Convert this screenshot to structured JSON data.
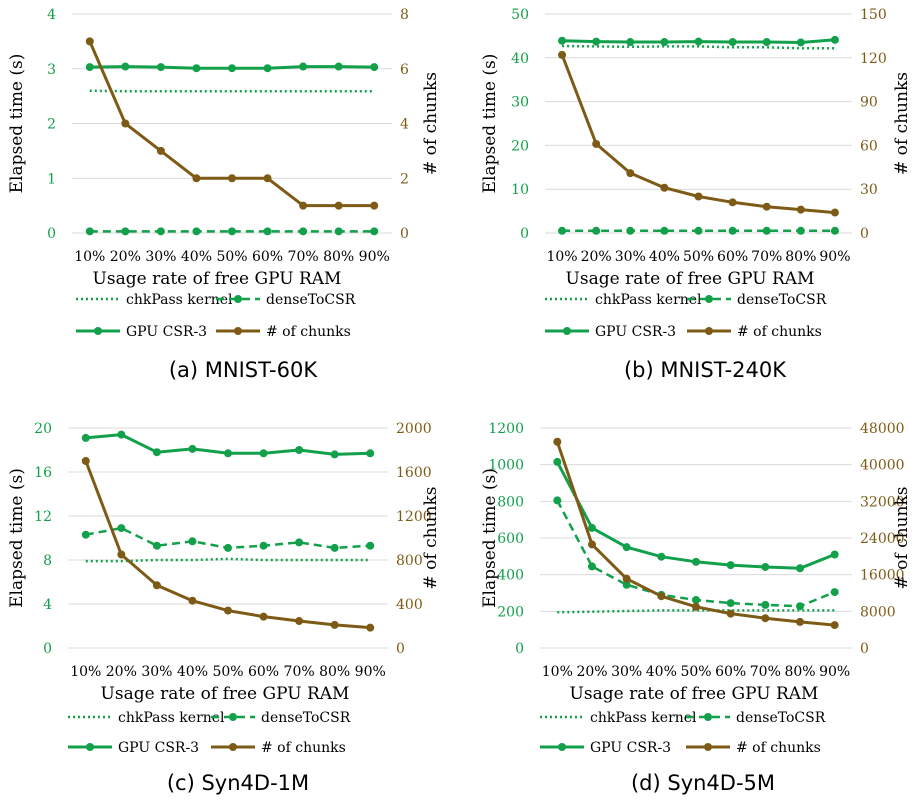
{
  "colors": {
    "primary_green": "#12a04b",
    "chunks_brown": "#7d5b17",
    "gridline": "#d9d9d9"
  },
  "chart_data": [
    {
      "type": "line",
      "caption": "(a) MNIST-60K",
      "x": [
        "10%",
        "20%",
        "30%",
        "40%",
        "50%",
        "60%",
        "70%",
        "80%",
        "90%"
      ],
      "xlabel": "Usage rate of free GPU RAM",
      "ylabel": "Elapsed time (s)",
      "ylabel2": "# of chunks",
      "ylim": [
        0,
        4
      ],
      "yticks": [
        0,
        1,
        2,
        3,
        4
      ],
      "y2lim": [
        0,
        8
      ],
      "y2ticks": [
        0,
        2,
        4,
        6,
        8
      ],
      "grid": true,
      "legend_position": "bottom",
      "series": [
        {
          "name": "chkPass kernel",
          "axis": "left",
          "values": [
            2.6,
            2.59,
            2.59,
            2.59,
            2.59,
            2.59,
            2.59,
            2.59,
            2.59
          ]
        },
        {
          "name": "denseToCSR",
          "axis": "left",
          "values": [
            0.03,
            0.03,
            0.03,
            0.03,
            0.03,
            0.03,
            0.03,
            0.03,
            0.03
          ]
        },
        {
          "name": "GPU CSR-3",
          "axis": "left",
          "values": [
            3.03,
            3.04,
            3.03,
            3.01,
            3.01,
            3.01,
            3.04,
            3.04,
            3.03
          ]
        },
        {
          "name": "# of chunks",
          "axis": "right",
          "values": [
            7,
            4,
            3,
            2,
            2,
            2,
            1,
            1,
            1
          ]
        }
      ]
    },
    {
      "type": "line",
      "caption": "(b) MNIST-240K",
      "x": [
        "10%",
        "20%",
        "30%",
        "40%",
        "50%",
        "60%",
        "70%",
        "80%",
        "90%"
      ],
      "xlabel": "Usage rate of free GPU RAM",
      "ylabel": "Elapsed time (s)",
      "ylabel2": "# of chunks",
      "ylim": [
        0,
        50
      ],
      "yticks": [
        0,
        10,
        20,
        30,
        40,
        50
      ],
      "y2lim": [
        0,
        150
      ],
      "y2ticks": [
        0,
        30,
        60,
        90,
        120,
        150
      ],
      "grid": true,
      "legend_position": "bottom",
      "series": [
        {
          "name": "chkPass kernel",
          "axis": "left",
          "values": [
            42.7,
            42.6,
            42.5,
            42.6,
            42.6,
            42.4,
            42.4,
            42.2,
            42.2
          ]
        },
        {
          "name": "denseToCSR",
          "axis": "left",
          "values": [
            0.5,
            0.5,
            0.5,
            0.5,
            0.5,
            0.5,
            0.5,
            0.5,
            0.5
          ]
        },
        {
          "name": "GPU CSR-3",
          "axis": "left",
          "values": [
            43.9,
            43.7,
            43.6,
            43.6,
            43.7,
            43.6,
            43.6,
            43.5,
            44.1
          ]
        },
        {
          "name": "# of chunks",
          "axis": "right",
          "values": [
            122,
            61,
            41,
            31,
            25,
            21,
            18,
            16,
            14
          ]
        }
      ]
    },
    {
      "type": "line",
      "caption": "(c) Syn4D-1M",
      "x": [
        "10%",
        "20%",
        "30%",
        "40%",
        "50%",
        "60%",
        "70%",
        "80%",
        "90%"
      ],
      "xlabel": "Usage rate of free GPU RAM",
      "ylabel": "Elapsed time (s)",
      "ylabel2": "# of chunks",
      "ylim": [
        0,
        20
      ],
      "yticks": [
        0,
        4,
        8,
        12,
        16,
        20
      ],
      "y2lim": [
        0,
        2000
      ],
      "y2ticks": [
        0,
        400,
        800,
        1200,
        1600,
        2000
      ],
      "grid": true,
      "legend_position": "bottom",
      "series": [
        {
          "name": "chkPass kernel",
          "axis": "left",
          "values": [
            7.9,
            7.9,
            8.0,
            8.0,
            8.1,
            8.0,
            8.0,
            8.0,
            8.0
          ]
        },
        {
          "name": "denseToCSR",
          "axis": "left",
          "values": [
            10.3,
            10.9,
            9.3,
            9.7,
            9.1,
            9.3,
            9.6,
            9.1,
            9.3
          ]
        },
        {
          "name": "GPU CSR-3",
          "axis": "left",
          "values": [
            19.1,
            19.4,
            17.8,
            18.1,
            17.7,
            17.7,
            18.0,
            17.6,
            17.7
          ]
        },
        {
          "name": "# of chunks",
          "axis": "right",
          "values": [
            1700,
            850,
            570,
            430,
            340,
            285,
            245,
            210,
            185
          ]
        }
      ]
    },
    {
      "type": "line",
      "caption": "(d) Syn4D-5M",
      "x": [
        "10%",
        "20%",
        "30%",
        "40%",
        "50%",
        "60%",
        "70%",
        "80%",
        "90%"
      ],
      "xlabel": "Usage rate of free GPU RAM",
      "ylabel": "Elapsed time (s)",
      "ylabel2": "# of chunks",
      "ylim": [
        0,
        1200
      ],
      "yticks": [
        0,
        200,
        400,
        600,
        800,
        1000,
        1200
      ],
      "y2lim": [
        0,
        48000
      ],
      "y2ticks": [
        0,
        8000,
        16000,
        24000,
        32000,
        40000,
        48000
      ],
      "grid": true,
      "legend_position": "bottom",
      "series": [
        {
          "name": "chkPass kernel",
          "axis": "left",
          "values": [
            195,
            198,
            202,
            205,
            205,
            205,
            205,
            205,
            205
          ]
        },
        {
          "name": "denseToCSR",
          "axis": "left",
          "values": [
            805,
            445,
            345,
            290,
            262,
            245,
            235,
            228,
            305
          ]
        },
        {
          "name": "GPU CSR-3",
          "axis": "left",
          "values": [
            1015,
            655,
            550,
            498,
            470,
            452,
            442,
            435,
            510
          ]
        },
        {
          "name": "# of chunks",
          "axis": "right",
          "values": [
            45000,
            22600,
            15100,
            11300,
            9000,
            7500,
            6500,
            5700,
            5000
          ]
        }
      ]
    }
  ]
}
